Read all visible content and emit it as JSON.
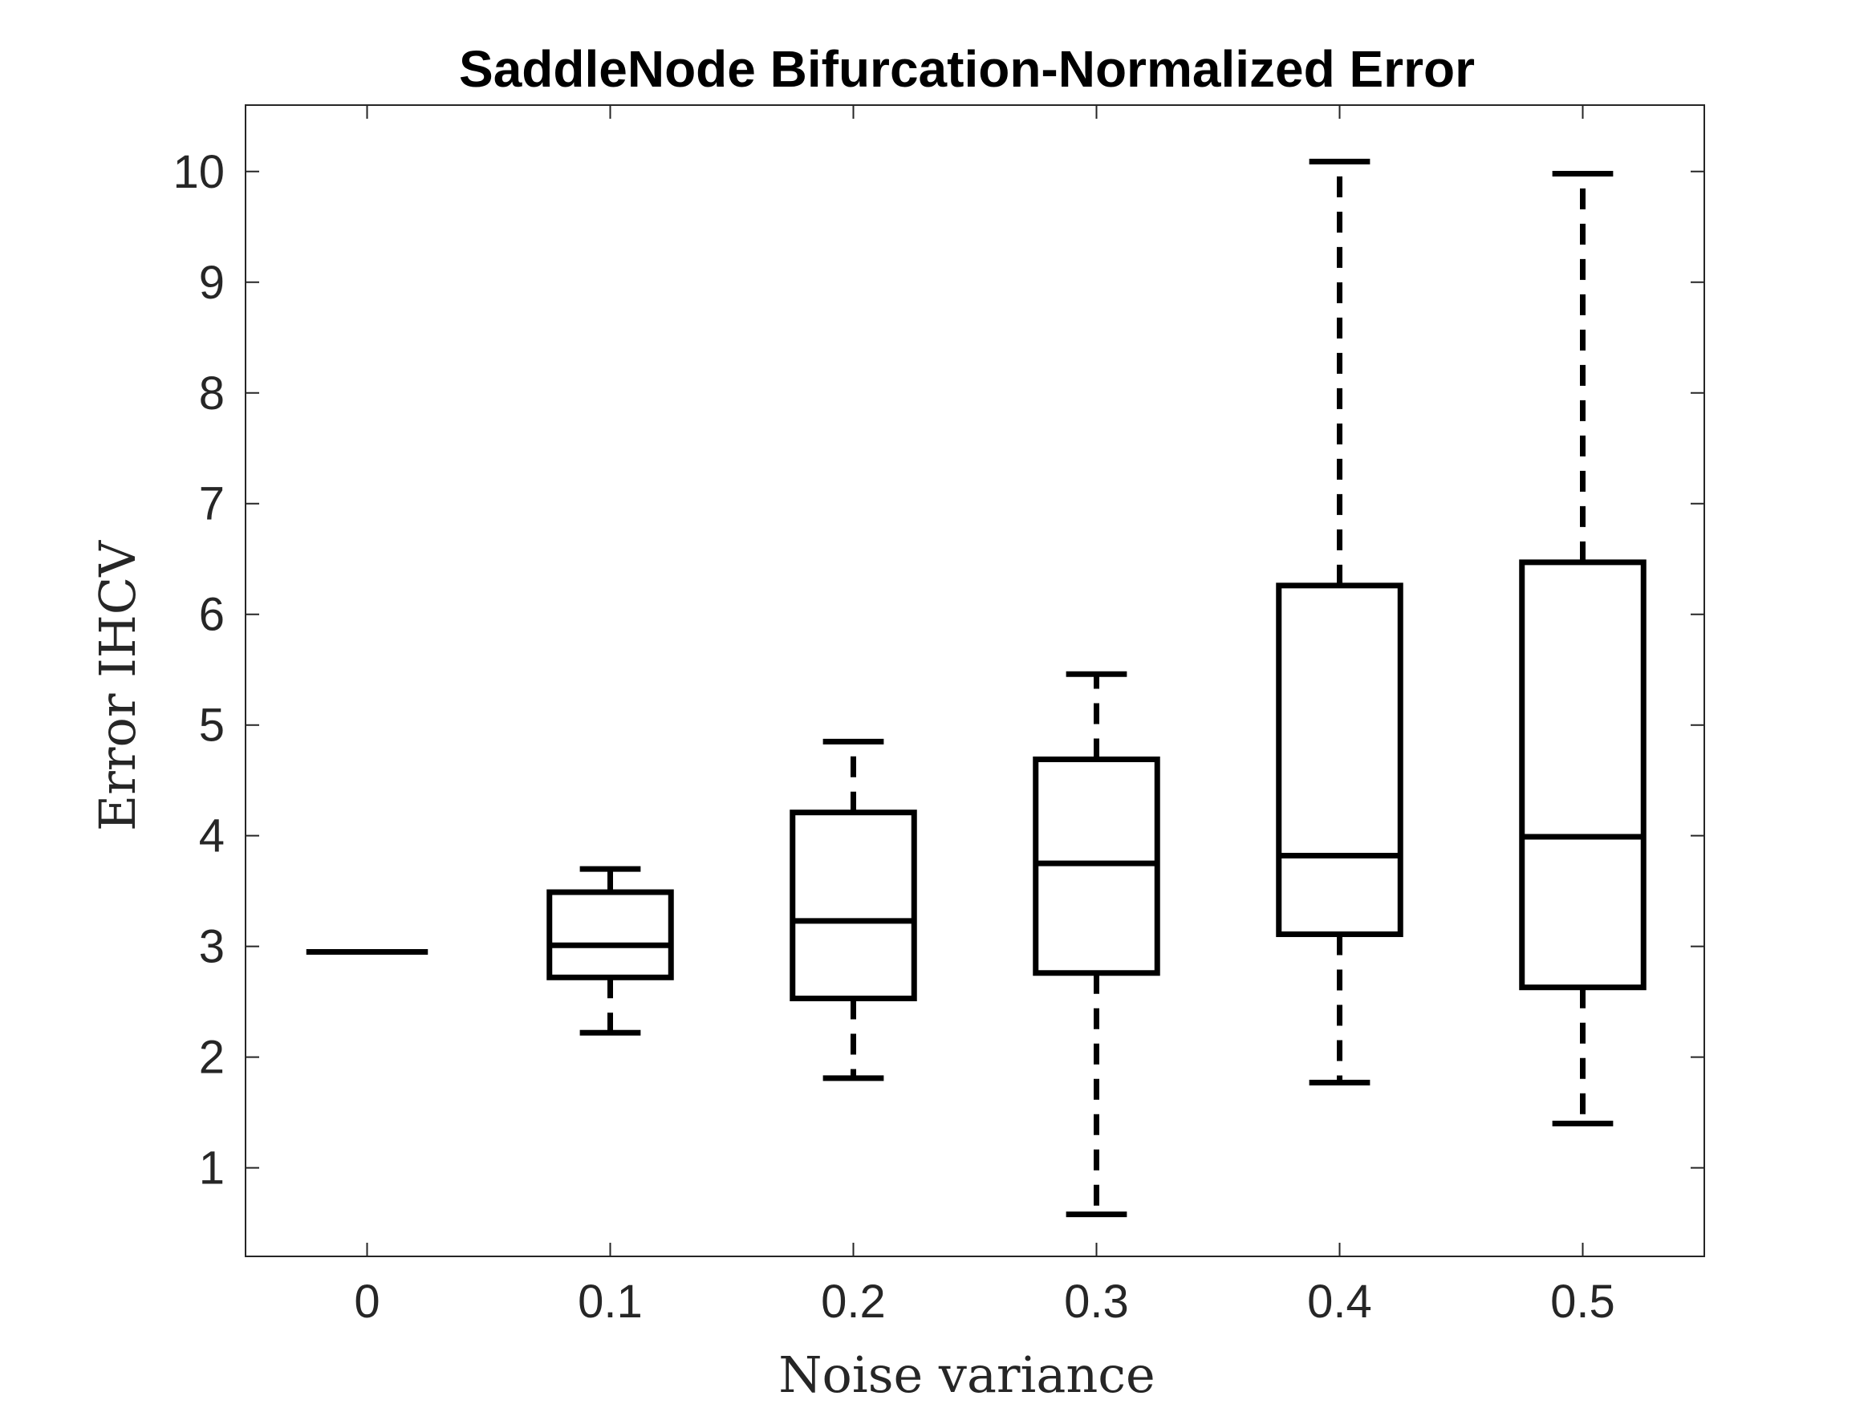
{
  "chart_data": {
    "type": "box",
    "title": "SaddleNode Bifurcation-Normalized Error",
    "xlabel": "Noise variance",
    "ylabel": "Error IHCV",
    "categories": [
      "0",
      "0.1",
      "0.2",
      "0.3",
      "0.4",
      "0.5"
    ],
    "yticks": [
      "1",
      "2",
      "3",
      "4",
      "5",
      "6",
      "7",
      "8",
      "9",
      "10"
    ],
    "ylim": [
      0.2,
      10.6
    ],
    "boxes": [
      {
        "x": "0",
        "min": 2.95,
        "q1": 2.95,
        "median": 2.95,
        "q3": 2.95,
        "max": 2.95
      },
      {
        "x": "0.1",
        "min": 2.22,
        "q1": 2.72,
        "median": 3.01,
        "q3": 3.49,
        "max": 3.7
      },
      {
        "x": "0.2",
        "min": 1.81,
        "q1": 2.53,
        "median": 3.23,
        "q3": 4.21,
        "max": 4.85
      },
      {
        "x": "0.3",
        "min": 0.58,
        "q1": 2.76,
        "median": 3.75,
        "q3": 4.69,
        "max": 5.46
      },
      {
        "x": "0.4",
        "min": 1.77,
        "q1": 3.11,
        "median": 3.82,
        "q3": 6.26,
        "max": 10.09
      },
      {
        "x": "0.5",
        "min": 1.4,
        "q1": 2.63,
        "median": 3.99,
        "q3": 6.47,
        "max": 9.98
      }
    ],
    "grid": false,
    "colors": {
      "box": "#000000",
      "axis": "#262626"
    }
  }
}
